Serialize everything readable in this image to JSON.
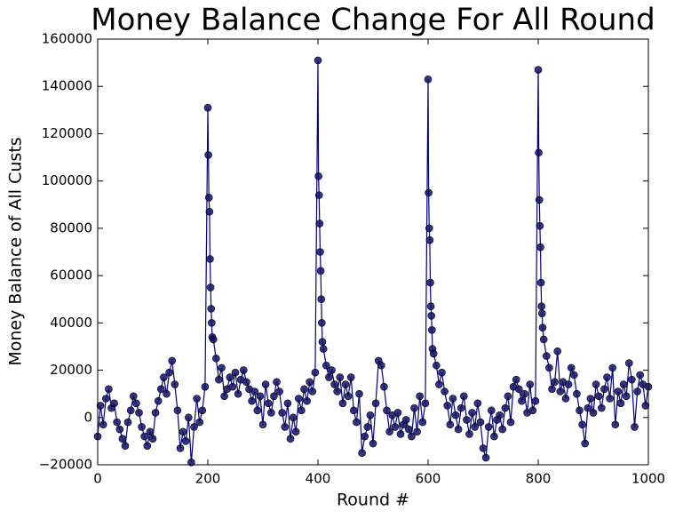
{
  "chart_data": {
    "type": "line",
    "title": "Money Balance Change For All Round",
    "x_label": "Round #",
    "y_label": "Money Balance of All Custs",
    "x": [
      0,
      5,
      10,
      15,
      20,
      25,
      30,
      35,
      40,
      45,
      50,
      55,
      60,
      65,
      70,
      75,
      80,
      85,
      90,
      95,
      100,
      105,
      110,
      115,
      120,
      125,
      130,
      135,
      140,
      145,
      150,
      155,
      160,
      165,
      170,
      175,
      180,
      185,
      190,
      195,
      200,
      201,
      202,
      203,
      204,
      205,
      206,
      207,
      208,
      210,
      215,
      220,
      225,
      230,
      235,
      240,
      245,
      250,
      255,
      260,
      265,
      270,
      275,
      280,
      285,
      290,
      295,
      300,
      305,
      310,
      315,
      320,
      325,
      330,
      335,
      340,
      345,
      350,
      355,
      360,
      365,
      370,
      375,
      380,
      385,
      390,
      395,
      400,
      401,
      402,
      403,
      404,
      405,
      406,
      407,
      408,
      410,
      415,
      420,
      425,
      430,
      435,
      440,
      445,
      450,
      455,
      460,
      465,
      470,
      475,
      480,
      485,
      490,
      495,
      500,
      505,
      510,
      515,
      520,
      525,
      530,
      535,
      540,
      545,
      550,
      555,
      560,
      565,
      570,
      575,
      580,
      585,
      590,
      595,
      600,
      601,
      602,
      603,
      604,
      605,
      606,
      607,
      608,
      610,
      615,
      620,
      625,
      630,
      635,
      640,
      645,
      650,
      655,
      660,
      665,
      670,
      675,
      680,
      685,
      690,
      695,
      700,
      705,
      710,
      715,
      720,
      725,
      730,
      735,
      740,
      745,
      750,
      755,
      760,
      765,
      770,
      775,
      780,
      785,
      790,
      795,
      800,
      801,
      802,
      803,
      804,
      805,
      806,
      807,
      808,
      810,
      815,
      820,
      825,
      830,
      835,
      840,
      845,
      850,
      855,
      860,
      865,
      870,
      875,
      880,
      885,
      890,
      895,
      900,
      905,
      910,
      915,
      920,
      925,
      930,
      935,
      940,
      945,
      950,
      955,
      960,
      965,
      970,
      975,
      980,
      985,
      990,
      995,
      1000
    ],
    "series": [
      {
        "name": "Money Balance",
        "color": "#000080",
        "marker_color": "#10106a",
        "values": [
          -8000,
          5000,
          -3000,
          8000,
          12000,
          4000,
          6000,
          -2000,
          -5000,
          -9000,
          -12000,
          -2000,
          3000,
          9000,
          6000,
          2000,
          -4000,
          -8000,
          -12000,
          -6000,
          -9000,
          2000,
          7000,
          12000,
          17000,
          10000,
          19000,
          24000,
          14000,
          3000,
          -13000,
          -6000,
          -10000,
          0,
          -19000,
          -4000,
          8000,
          -2000,
          3000,
          13000,
          131000,
          111000,
          93000,
          87000,
          67000,
          55000,
          46000,
          40000,
          34000,
          33000,
          25000,
          16000,
          21000,
          9000,
          12000,
          17000,
          13000,
          19000,
          10000,
          16000,
          20000,
          15000,
          12000,
          7000,
          11000,
          3000,
          9000,
          -3000,
          14000,
          6000,
          2000,
          9000,
          15000,
          11000,
          2000,
          -4000,
          6000,
          -9000,
          0,
          -6000,
          8000,
          3000,
          12000,
          7000,
          15000,
          11000,
          19000,
          151000,
          102000,
          94000,
          82000,
          70000,
          62000,
          50000,
          40000,
          32000,
          29000,
          22000,
          17000,
          20000,
          14000,
          11000,
          17000,
          6000,
          14000,
          9000,
          17000,
          3000,
          -2000,
          10000,
          -15000,
          -8000,
          -4000,
          1000,
          -11000,
          6000,
          24000,
          22000,
          13000,
          3000,
          -6000,
          1000,
          -4000,
          2000,
          -7000,
          -3000,
          -1000,
          -5000,
          -8000,
          4000,
          -6000,
          9000,
          -2000,
          6000,
          143000,
          95000,
          80000,
          75000,
          57000,
          47000,
          43000,
          37000,
          29000,
          27000,
          22000,
          14000,
          19000,
          11000,
          5000,
          -3000,
          8000,
          1000,
          -5000,
          4000,
          9000,
          -1000,
          -7000,
          2000,
          -4000,
          6000,
          -2000,
          -13000,
          -17000,
          -4000,
          3000,
          -8000,
          -1000,
          1000,
          -5000,
          4000,
          9000,
          -2000,
          13000,
          16000,
          12000,
          7000,
          10000,
          2000,
          14000,
          3000,
          7000,
          147000,
          112000,
          92000,
          81000,
          72000,
          57000,
          47000,
          44000,
          38000,
          33000,
          26000,
          21000,
          12000,
          15000,
          28000,
          11000,
          15000,
          8000,
          14000,
          21000,
          18000,
          10000,
          3000,
          -3000,
          -11000,
          4000,
          8000,
          2000,
          14000,
          9000,
          4000,
          12000,
          17000,
          8000,
          21000,
          -3000,
          11000,
          6000,
          14000,
          9000,
          23000,
          16000,
          -4000,
          11000,
          18000,
          14000,
          5000,
          13000
        ]
      }
    ],
    "xlim": [
      0,
      1000
    ],
    "ylim": [
      -20000,
      160000
    ],
    "xticks": [
      0,
      200,
      400,
      600,
      800,
      1000
    ],
    "yticks": [
      {
        "value": -20000,
        "label": "−20000"
      },
      0,
      20000,
      40000,
      60000,
      80000,
      100000,
      120000,
      140000,
      160000
    ],
    "grid": false
  }
}
